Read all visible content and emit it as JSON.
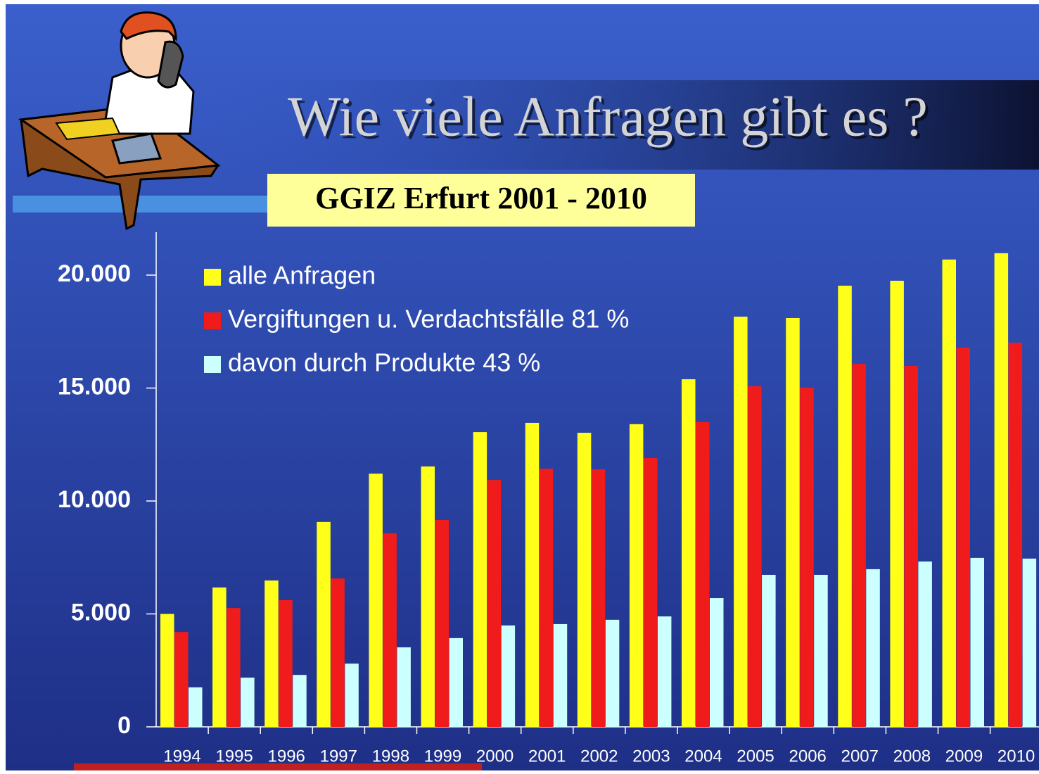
{
  "chart_data": {
    "type": "bar",
    "title": "Wie viele Anfragen gibt es ?",
    "subtitle": "GGIZ Erfurt 2001 - 2010",
    "categories": [
      "1994",
      "1995",
      "1996",
      "1997",
      "1998",
      "1999",
      "2000",
      "2001",
      "2002",
      "2003",
      "2004",
      "2005",
      "2006",
      "2007",
      "2008",
      "2009",
      "2010"
    ],
    "series": [
      {
        "name": "alle Anfragen",
        "color": "#ffff1a",
        "values": [
          5000,
          6170,
          6480,
          9070,
          11210,
          11530,
          13050,
          13460,
          13020,
          13400,
          15390,
          18160,
          18100,
          19530,
          19750,
          20690,
          20970
        ]
      },
      {
        "name": "Vergiftungen u. Verdachtsfälle 81 %",
        "color": "#f01c1c",
        "values": [
          4200,
          5260,
          5610,
          6570,
          8570,
          9160,
          10930,
          11430,
          11400,
          11900,
          13490,
          15080,
          15020,
          16070,
          15980,
          16790,
          17010
        ]
      },
      {
        "name": "davon durch Produkte 43 %",
        "color": "#ccffff",
        "values": [
          1750,
          2180,
          2300,
          2800,
          3520,
          3930,
          4490,
          4550,
          4740,
          4890,
          5700,
          6730,
          6730,
          6980,
          7320,
          7480,
          7450
        ]
      }
    ],
    "ylim": [
      0,
      21900
    ],
    "yticks": [
      0,
      {
        "value": 5000,
        "label": "5.000"
      },
      {
        "value": 10000,
        "label": "10.000"
      },
      {
        "value": 15000,
        "label": "15.000"
      },
      {
        "value": 20000,
        "label": "20.000"
      }
    ],
    "legend": "top-left"
  }
}
